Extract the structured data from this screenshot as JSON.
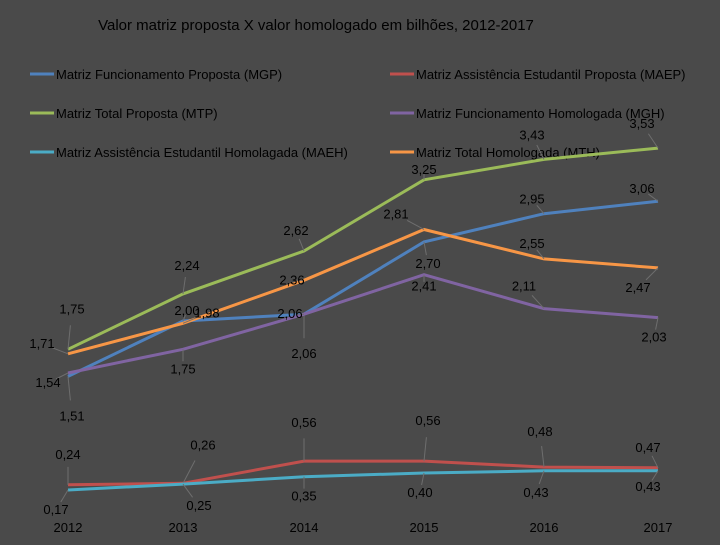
{
  "chart_data": {
    "type": "line",
    "title": "Valor  matriz proposta X valor homologado em bilhões, 2012-2017",
    "xlabel": "",
    "ylabel": "",
    "categories": [
      "2012",
      "2013",
      "2014",
      "2015",
      "2016",
      "2017"
    ],
    "grid": false,
    "legend_placement": "top",
    "series": [
      {
        "name": "Matriz Funcionamento Proposta (MGP)",
        "color": "#4f81bd",
        "values": [
          1.51,
          2.0,
          2.06,
          2.7,
          2.95,
          3.06
        ],
        "labels": [
          "1,51",
          "2,00",
          "2,06",
          "2,70",
          "2,95",
          "3,06"
        ]
      },
      {
        "name": "Matriz Assistência Estudantil Proposta (MAEP)",
        "color": "#c0504d",
        "values": [
          0.24,
          0.26,
          0.56,
          0.56,
          0.48,
          0.47
        ],
        "labels": [
          "0,24",
          "0,26",
          "0,56",
          "0,56",
          "0,48",
          "0,47"
        ]
      },
      {
        "name": "Matriz Total Proposta (MTP)",
        "color": "#9bbb59",
        "values": [
          1.75,
          2.24,
          2.62,
          3.25,
          3.43,
          3.53
        ],
        "labels": [
          "1,75",
          "2,24",
          "2,62",
          "3,25",
          "3,43",
          "3,53"
        ]
      },
      {
        "name": "Matriz Funcionamento Homologada (MGH)",
        "color": "#8064a2",
        "values": [
          1.54,
          1.75,
          2.06,
          2.41,
          2.11,
          2.03
        ],
        "labels": [
          "1,54",
          "1,75",
          "2,06",
          "2,41",
          "2,11",
          "2,03"
        ]
      },
      {
        "name": "Matriz Assistência Estudantil Homolagada (MAEH)",
        "color": "#4bacc6",
        "values": [
          0.17,
          0.25,
          0.35,
          0.4,
          0.43,
          0.43
        ],
        "labels": [
          "0,17",
          "0,25",
          "0,35",
          "0,40",
          "0,43",
          "0,43"
        ]
      },
      {
        "name": "Matriz Total Homologada (MTH)",
        "color": "#f79646",
        "values": [
          1.71,
          1.98,
          2.36,
          2.81,
          2.55,
          2.47
        ],
        "labels": [
          "1,71",
          "1,98",
          "2,36",
          "2,81",
          "2,55",
          "2,47"
        ]
      }
    ]
  }
}
